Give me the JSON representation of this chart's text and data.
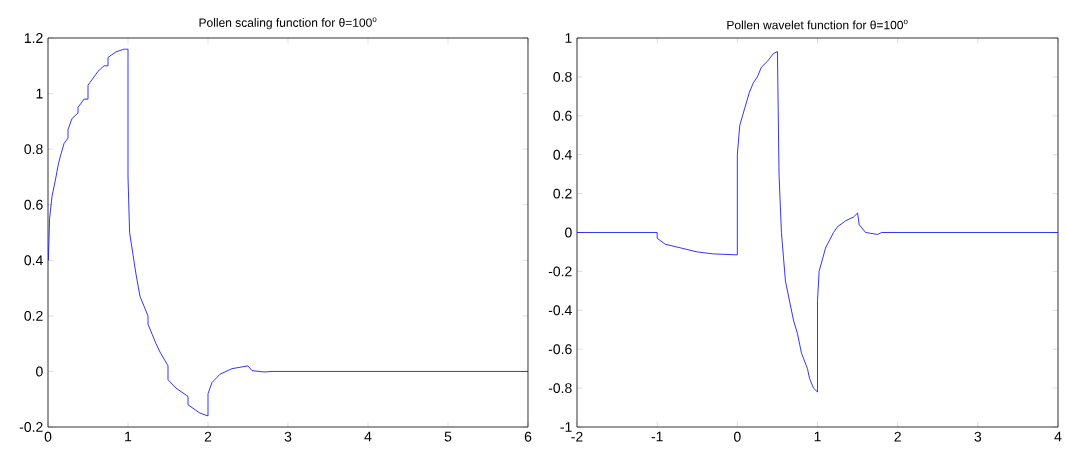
{
  "chart_data": [
    {
      "type": "line",
      "title": "Pollen scaling function for θ=100$^{o}$",
      "color": "#0000ff",
      "x": [
        0.005,
        0.02,
        0.05,
        0.1,
        0.125,
        0.15,
        0.2,
        0.25,
        0.25,
        0.3,
        0.375,
        0.375,
        0.45,
        0.5,
        0.5,
        0.6,
        0.625,
        0.7,
        0.75,
        0.75,
        0.85,
        0.95,
        1,
        1,
        1.02,
        1.1,
        1.15,
        1.25,
        1.25,
        1.35,
        1.4,
        1.5,
        1.5,
        1.6,
        1.75,
        1.75,
        1.9,
        2,
        2,
        2.05,
        2.15,
        2.3,
        2.4,
        2.5,
        2.55,
        2.7,
        2.8,
        6
      ],
      "values": [
        0.4,
        0.55,
        0.63,
        0.7,
        0.74,
        0.77,
        0.82,
        0.84,
        0.87,
        0.91,
        0.93,
        0.95,
        0.98,
        0.98,
        1.03,
        1.07,
        1.08,
        1.1,
        1.1,
        1.13,
        1.15,
        1.16,
        1.16,
        0.7,
        0.5,
        0.35,
        0.27,
        0.2,
        0.17,
        0.1,
        0.07,
        0.02,
        -0.03,
        -0.06,
        -0.09,
        -0.12,
        -0.15,
        -0.16,
        -0.08,
        -0.04,
        -0.01,
        0.01,
        0.015,
        0.02,
        0.003,
        -0.002,
        0,
        0
      ],
      "xlim": [
        0,
        6
      ],
      "ylim": [
        -0.2,
        1.2
      ],
      "xticks": [
        0,
        1,
        2,
        3,
        4,
        5,
        6
      ],
      "yticks": [
        -0.2,
        0,
        0.2,
        0.4,
        0.6,
        0.8,
        1,
        1.2
      ]
    },
    {
      "type": "line",
      "title": "Pollen wavelet function for θ=100$^{o}$",
      "color": "#0000ff",
      "x": [
        -2,
        -1,
        -1,
        -0.9,
        -0.7,
        -0.5,
        -0.3,
        0,
        0,
        0.03,
        0.1,
        0.15,
        0.2,
        0.25,
        0.3,
        0.375,
        0.45,
        0.5,
        0.52,
        0.55,
        0.6,
        0.65,
        0.7,
        0.75,
        0.8,
        0.875,
        0.9,
        0.95,
        1,
        1,
        1.02,
        1.1,
        1.2,
        1.25,
        1.35,
        1.45,
        1.5,
        1.52,
        1.6,
        1.75,
        1.8,
        4
      ],
      "values": [
        0,
        0,
        -0.03,
        -0.06,
        -0.08,
        -0.1,
        -0.11,
        -0.115,
        0.4,
        0.55,
        0.65,
        0.72,
        0.77,
        0.8,
        0.85,
        0.88,
        0.92,
        0.93,
        0.3,
        0,
        -0.25,
        -0.35,
        -0.45,
        -0.52,
        -0.62,
        -0.7,
        -0.75,
        -0.8,
        -0.82,
        -0.35,
        -0.2,
        -0.08,
        0,
        0.03,
        0.06,
        0.08,
        0.1,
        0.04,
        0,
        -0.01,
        0,
        0
      ],
      "xlim": [
        -2,
        4
      ],
      "ylim": [
        -1,
        1
      ],
      "xticks": [
        -2,
        -1,
        0,
        1,
        2,
        3,
        4
      ],
      "yticks": [
        -1,
        -0.8,
        -0.6,
        -0.4,
        -0.2,
        0,
        0.2,
        0.4,
        0.6,
        0.8,
        1
      ]
    }
  ]
}
